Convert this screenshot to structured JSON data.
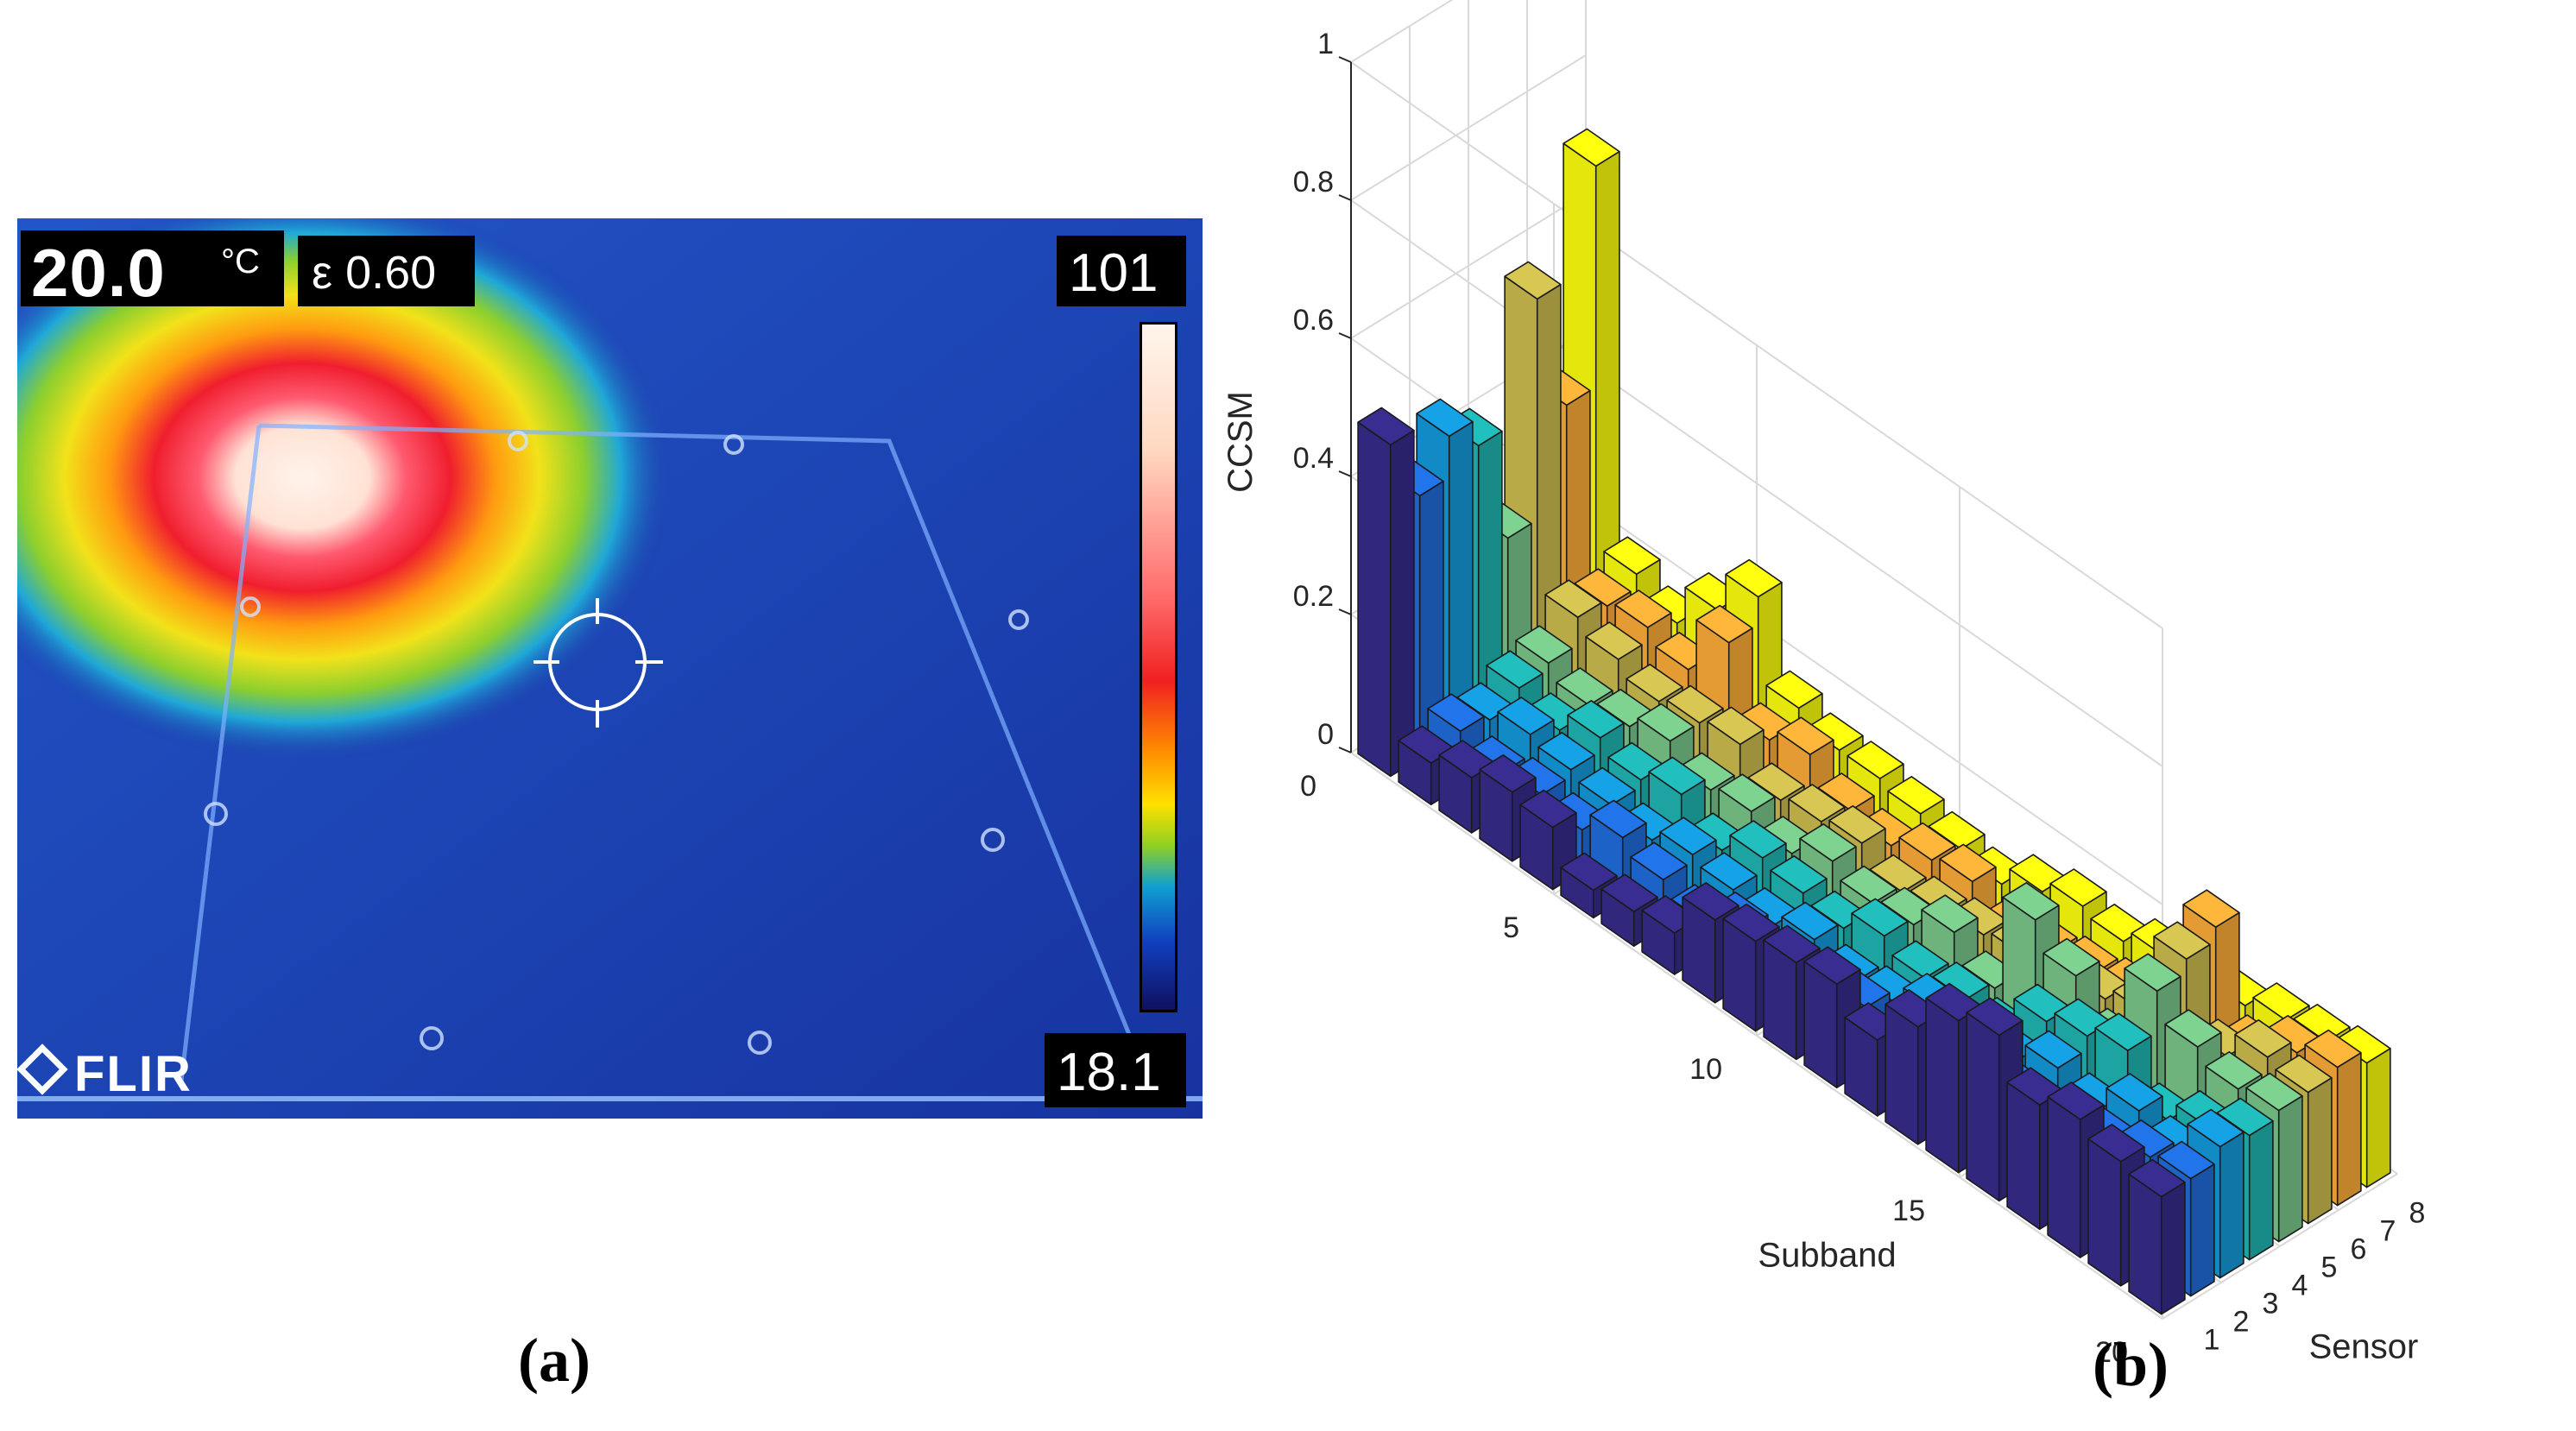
{
  "figure": {
    "panel_a_label": "(a)",
    "panel_b_label": "(b)"
  },
  "thermal": {
    "spot_temperature": "20.0",
    "unit": "°C",
    "emissivity": "ε 0.60",
    "scale_max": "101",
    "scale_min": "18.1",
    "brand": "FLIR"
  },
  "chart_data": {
    "type": "bar3d",
    "title": "",
    "xlabel": "Sensor",
    "ylabel": "Subband",
    "zlabel": "CCSM",
    "zlim": [
      0,
      1
    ],
    "z_ticks": [
      "0",
      "0.2",
      "0.4",
      "0.6",
      "0.8",
      "1"
    ],
    "subband_ticks": [
      "0",
      "5",
      "10",
      "15",
      "20"
    ],
    "sensor_ticks": [
      "1",
      "2",
      "3",
      "4",
      "5",
      "6",
      "7",
      "8"
    ],
    "subbands": [
      1,
      2,
      3,
      4,
      5,
      6,
      7,
      8,
      9,
      10,
      11,
      12,
      13,
      14,
      15,
      16,
      17,
      18,
      19,
      20
    ],
    "sensors": [
      1,
      2,
      3,
      4,
      5,
      6,
      7,
      8
    ],
    "sensor_colors": [
      "#352a87",
      "#1f6bd8",
      "#1496d6",
      "#1fb2b0",
      "#76c386",
      "#c8b94d",
      "#f9a937",
      "#f8fa0d"
    ],
    "values": [
      [
        0.48,
        0.38,
        0.44,
        0.4,
        0.24,
        0.56,
        0.38,
        0.7
      ],
      [
        0.06,
        0.08,
        0.07,
        0.09,
        0.1,
        0.14,
        0.13,
        0.15
      ],
      [
        0.08,
        0.06,
        0.09,
        0.07,
        0.08,
        0.12,
        0.14,
        0.12
      ],
      [
        0.1,
        0.07,
        0.08,
        0.1,
        0.09,
        0.1,
        0.12,
        0.18
      ],
      [
        0.09,
        0.06,
        0.07,
        0.08,
        0.11,
        0.11,
        0.2,
        0.24
      ],
      [
        0.04,
        0.09,
        0.06,
        0.1,
        0.08,
        0.12,
        0.1,
        0.12
      ],
      [
        0.05,
        0.07,
        0.08,
        0.06,
        0.09,
        0.08,
        0.12,
        0.1
      ],
      [
        0.06,
        0.05,
        0.07,
        0.09,
        0.07,
        0.09,
        0.08,
        0.1
      ],
      [
        0.12,
        0.08,
        0.06,
        0.08,
        0.1,
        0.1,
        0.07,
        0.09
      ],
      [
        0.13,
        0.06,
        0.08,
        0.07,
        0.08,
        0.07,
        0.09,
        0.08
      ],
      [
        0.14,
        0.07,
        0.06,
        0.1,
        0.09,
        0.08,
        0.1,
        0.07
      ],
      [
        0.15,
        0.09,
        0.07,
        0.08,
        0.12,
        0.09,
        0.06,
        0.1
      ],
      [
        0.11,
        0.07,
        0.1,
        0.09,
        0.08,
        0.1,
        0.08,
        0.12
      ],
      [
        0.17,
        0.12,
        0.09,
        0.08,
        0.22,
        0.1,
        0.09,
        0.11
      ],
      [
        0.22,
        0.13,
        0.11,
        0.14,
        0.18,
        0.12,
        0.1,
        0.13
      ],
      [
        0.24,
        0.12,
        0.14,
        0.16,
        0.12,
        0.14,
        0.12,
        0.1
      ],
      [
        0.18,
        0.1,
        0.12,
        0.18,
        0.24,
        0.26,
        0.28,
        0.14
      ],
      [
        0.2,
        0.14,
        0.16,
        0.12,
        0.2,
        0.16,
        0.14,
        0.16
      ],
      [
        0.18,
        0.16,
        0.14,
        0.15,
        0.18,
        0.2,
        0.18,
        0.17
      ],
      [
        0.17,
        0.17,
        0.19,
        0.18,
        0.19,
        0.19,
        0.2,
        0.18
      ]
    ]
  }
}
